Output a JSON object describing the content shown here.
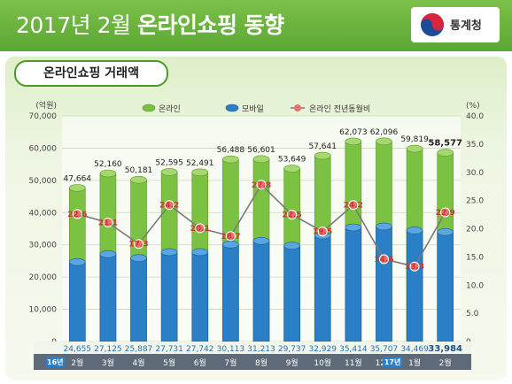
{
  "header": {
    "title_normal": "2017년 2월",
    "title_bold": "온라인쇼핑 동향",
    "logo_text": "통계청"
  },
  "subtitle": "온라인쇼핑 거래액",
  "chart_data": {
    "type": "bar",
    "categories": [
      "2월",
      "3월",
      "4월",
      "5월",
      "6월",
      "7월",
      "8월",
      "9월",
      "10월",
      "11월",
      "12월",
      "1월",
      "2월"
    ],
    "year_markers": [
      {
        "index": 0,
        "label": "16년"
      },
      {
        "index": 11,
        "label": "17년"
      }
    ],
    "series": [
      {
        "name": "온라인",
        "type": "bar",
        "color": "#7cc242",
        "values": [
          47664,
          52160,
          50181,
          52595,
          52491,
          56488,
          56601,
          53649,
          57641,
          62073,
          62096,
          59819,
          58577
        ]
      },
      {
        "name": "모바일",
        "type": "bar",
        "color": "#2b7fc6",
        "values": [
          24655,
          27125,
          25887,
          27731,
          27742,
          30113,
          31213,
          29737,
          32929,
          35414,
          35707,
          34469,
          33984
        ]
      },
      {
        "name": "온라인 전년동월비",
        "type": "line",
        "axis": "right",
        "color": "#e7736f",
        "values": [
          22.6,
          21.1,
          17.3,
          24.2,
          20.1,
          18.7,
          27.8,
          22.5,
          19.5,
          24.2,
          14.6,
          13.3,
          22.9
        ]
      }
    ],
    "y_left": {
      "unit": "(억원)",
      "ylim": [
        0,
        70000
      ],
      "ticks": [
        "0",
        "10,000",
        "20,000",
        "30,000",
        "40,000",
        "50,000",
        "60,000",
        "70,000"
      ]
    },
    "y_right": {
      "unit": "(%)",
      "ylim": [
        0,
        40
      ],
      "ticks": [
        "0",
        "5.0",
        "10.0",
        "15.0",
        "20.0",
        "25.0",
        "30.0",
        "35.0",
        "40.0"
      ]
    },
    "online_labels": [
      "47,664",
      "52,160",
      "50,181",
      "52,595",
      "52,491",
      "56,488",
      "56,601",
      "53,649",
      "57,641",
      "62,073",
      "62,096",
      "59,819",
      "58,577"
    ],
    "mobile_labels": [
      "24,655",
      "27,125",
      "25,887",
      "27,731",
      "27,742",
      "30,113",
      "31,213",
      "29,737",
      "32,929",
      "35,414",
      "35,707",
      "34,469",
      "33,984"
    ],
    "grid": true,
    "legend_position": "top"
  }
}
